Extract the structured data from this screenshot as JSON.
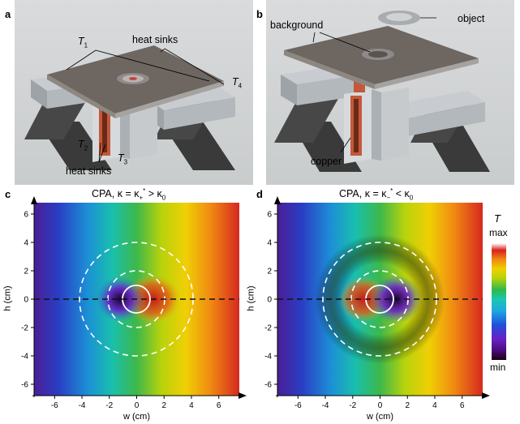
{
  "panels": {
    "a": {
      "letter": "a",
      "heat_sinks_top": "heat sinks",
      "heat_sinks_bottom": "heat sinks",
      "t1": "T",
      "t1_sub": "1",
      "t2": "T",
      "t2_sub": "2",
      "t3": "T",
      "t3_sub": "3",
      "t4": "T",
      "t4_sub": "4"
    },
    "b": {
      "letter": "b",
      "background": "background",
      "object": "object",
      "copper": "copper"
    },
    "c": {
      "letter": "c",
      "title_main": "CPA, κ = κ",
      "title_sub": "+",
      "title_sup": "*",
      "title_tail": " > κ",
      "title_tail_sub": "0"
    },
    "d": {
      "letter": "d",
      "title_main": "CPA, κ = κ",
      "title_sub": "−",
      "title_sup": "*",
      "title_tail": " < κ",
      "title_tail_sub": "0"
    }
  },
  "axes": {
    "xlabel": "w (cm)",
    "ylabel": "h (cm)",
    "xticks": [
      "-6",
      "-4",
      "-2",
      "0",
      "2",
      "4",
      "6"
    ],
    "yticks": [
      "6",
      "4",
      "2",
      "0",
      "-2",
      "-4",
      "-6"
    ]
  },
  "colorbar": {
    "title": "T",
    "max": "max",
    "min": "min"
  },
  "chart_data": [
    {
      "type": "heatmap",
      "title": "CPA, κ = κ+* > κ0",
      "xlabel": "w (cm)",
      "ylabel": "h (cm)",
      "xlim": [
        -7.5,
        7.5
      ],
      "ylim": [
        -6.8,
        6.8
      ],
      "xticks": [
        -6,
        -4,
        -2,
        0,
        2,
        4,
        6
      ],
      "yticks": [
        -6,
        -4,
        -2,
        0,
        2,
        4,
        6
      ],
      "colormap": "rainbow (min purple → max white)",
      "overlays": {
        "dashed_circles_radius_cm": [
          2.0,
          4.0
        ],
        "solid_circle_radius_cm": 1.0,
        "dashed_axis_h": 0
      },
      "background_gradient": "left min (purple) to right max (red)"
    },
    {
      "type": "heatmap",
      "title": "CPA, κ = κ−* < κ0",
      "xlabel": "w (cm)",
      "ylabel": "h (cm)",
      "xlim": [
        -7.5,
        7.5
      ],
      "ylim": [
        -6.8,
        6.8
      ],
      "xticks": [
        -6,
        -4,
        -2,
        0,
        2,
        4,
        6
      ],
      "yticks": [
        -6,
        -4,
        -2,
        0,
        2,
        4,
        6
      ],
      "colormap": "rainbow (min purple → max white)",
      "overlays": {
        "dashed_circles_radius_cm": [
          2.0,
          4.0
        ],
        "solid_circle_radius_cm": 1.0,
        "dashed_axis_h": 0
      },
      "background_gradient": "left min (purple) to right max (red)"
    }
  ],
  "colors": {
    "bar_stops": [
      "#1a0010",
      "#3a0066",
      "#6a1ec0",
      "#1e4fd8",
      "#1fa0e0",
      "#18c8b4",
      "#2fb84a",
      "#b6d20a",
      "#f0d000",
      "#f08a10",
      "#d82020",
      "#ffffff"
    ]
  }
}
